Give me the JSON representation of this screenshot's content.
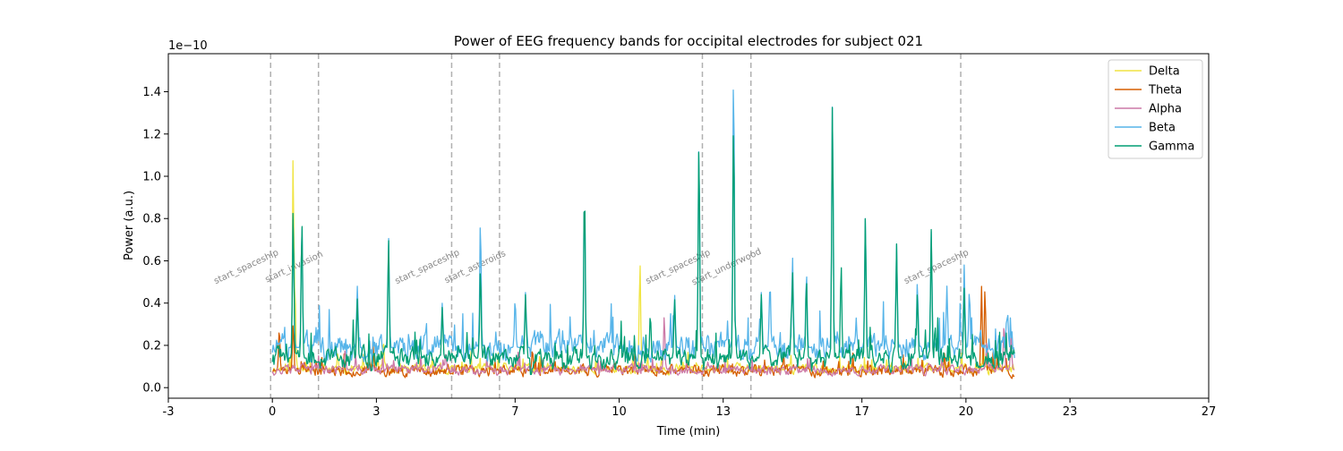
{
  "chart_data": {
    "type": "line",
    "title": "Power of EEG frequency bands for occipital electrodes for subject 021",
    "xlabel": "Time (min)",
    "ylabel": "Power (a.u.)",
    "y_offset_text": "1e−10",
    "xlim": [
      -3,
      27
    ],
    "ylim": [
      -0.05,
      1.58
    ],
    "x_tick_values": [
      -3,
      0,
      3,
      7,
      10,
      13,
      17,
      20,
      23,
      27
    ],
    "x_tick_labels": [
      "-3",
      "0",
      "3",
      "7",
      "10",
      "13",
      "17",
      "20",
      "23",
      "27"
    ],
    "y_tick_values": [
      0.0,
      0.2,
      0.4,
      0.6,
      0.8,
      1.0,
      1.2,
      1.4
    ],
    "y_tick_labels": [
      "0.0",
      "0.2",
      "0.4",
      "0.6",
      "0.8",
      "1.0",
      "1.2",
      "1.4"
    ],
    "grid": false,
    "legend_position": "top-right",
    "events": [
      {
        "x": -0.05,
        "label": "start_spaceship"
      },
      {
        "x": 1.33,
        "label": "start_invasion"
      },
      {
        "x": 5.17,
        "label": "start_spaceship"
      },
      {
        "x": 6.55,
        "label": "start_asteroids"
      },
      {
        "x": 12.4,
        "label": "start_spaceship"
      },
      {
        "x": 13.8,
        "label": "start_underwood"
      },
      {
        "x": 19.85,
        "label": "start_spaceship"
      }
    ],
    "series": [
      {
        "name": "Delta",
        "color": "#f0e442",
        "base": 0.09,
        "noise": 0.04,
        "x_start": 0.0,
        "x_end": 21.4,
        "seed": 11,
        "peaks": [
          [
            0.6,
            1.11
          ],
          [
            0.65,
            0.5
          ],
          [
            10.6,
            0.59
          ],
          [
            2.9,
            0.2
          ],
          [
            3.2,
            0.22
          ],
          [
            20.5,
            0.2
          ]
        ]
      },
      {
        "name": "Theta",
        "color": "#d55e00",
        "base": 0.08,
        "noise": 0.045,
        "x_start": 0.0,
        "x_end": 21.4,
        "seed": 23,
        "peaks": [
          [
            0.2,
            0.28
          ],
          [
            0.6,
            0.3
          ],
          [
            2.9,
            0.22
          ],
          [
            20.45,
            0.48
          ],
          [
            20.55,
            0.47
          ],
          [
            7.5,
            0.18
          ]
        ]
      },
      {
        "name": "Alpha",
        "color": "#cc79a7",
        "base": 0.085,
        "noise": 0.04,
        "x_start": 0.0,
        "x_end": 21.4,
        "seed": 37,
        "peaks": [
          [
            11.3,
            0.34
          ],
          [
            20.6,
            0.22
          ],
          [
            21.1,
            0.3
          ],
          [
            2.1,
            0.18
          ],
          [
            5.0,
            0.16
          ],
          [
            21.3,
            0.24
          ]
        ]
      },
      {
        "name": "Beta",
        "color": "#56b4e9",
        "base": 0.19,
        "noise": 0.11,
        "x_start": 0.0,
        "x_end": 21.4,
        "seed": 51,
        "peaks": [
          [
            0.6,
            0.82
          ],
          [
            0.85,
            0.78
          ],
          [
            2.45,
            0.48
          ],
          [
            3.35,
            0.71
          ],
          [
            6.0,
            0.8
          ],
          [
            7.3,
            0.45
          ],
          [
            9.0,
            0.95
          ],
          [
            11.6,
            0.44
          ],
          [
            12.3,
            1.17
          ],
          [
            13.3,
            1.51
          ],
          [
            14.1,
            0.45
          ],
          [
            14.35,
            0.5
          ],
          [
            15.0,
            0.62
          ],
          [
            16.15,
            1.36
          ],
          [
            17.1,
            0.81
          ],
          [
            18.0,
            0.68
          ],
          [
            19.0,
            0.74
          ],
          [
            19.45,
            0.48
          ],
          [
            19.95,
            0.58
          ],
          [
            20.1,
            0.46
          ],
          [
            21.2,
            0.36
          ],
          [
            4.9,
            0.4
          ],
          [
            7.0,
            0.42
          ],
          [
            15.4,
            0.55
          ],
          [
            18.6,
            0.5
          ]
        ]
      },
      {
        "name": "Gamma",
        "color": "#009e73",
        "base": 0.14,
        "noise": 0.09,
        "x_start": 0.0,
        "x_end": 21.4,
        "seed": 73,
        "peaks": [
          [
            0.6,
            0.85
          ],
          [
            0.85,
            0.79
          ],
          [
            2.45,
            0.42
          ],
          [
            3.35,
            0.7
          ],
          [
            6.0,
            0.57
          ],
          [
            7.3,
            0.44
          ],
          [
            9.0,
            0.96
          ],
          [
            11.6,
            0.42
          ],
          [
            12.3,
            1.17
          ],
          [
            13.3,
            1.28
          ],
          [
            14.1,
            0.44
          ],
          [
            15.0,
            0.55
          ],
          [
            16.15,
            1.36
          ],
          [
            16.4,
            0.59
          ],
          [
            17.1,
            0.81
          ],
          [
            18.0,
            0.68
          ],
          [
            19.0,
            0.75
          ],
          [
            19.95,
            0.47
          ],
          [
            4.9,
            0.38
          ],
          [
            15.4,
            0.52
          ],
          [
            18.6,
            0.45
          ],
          [
            10.9,
            0.35
          ]
        ]
      }
    ]
  }
}
